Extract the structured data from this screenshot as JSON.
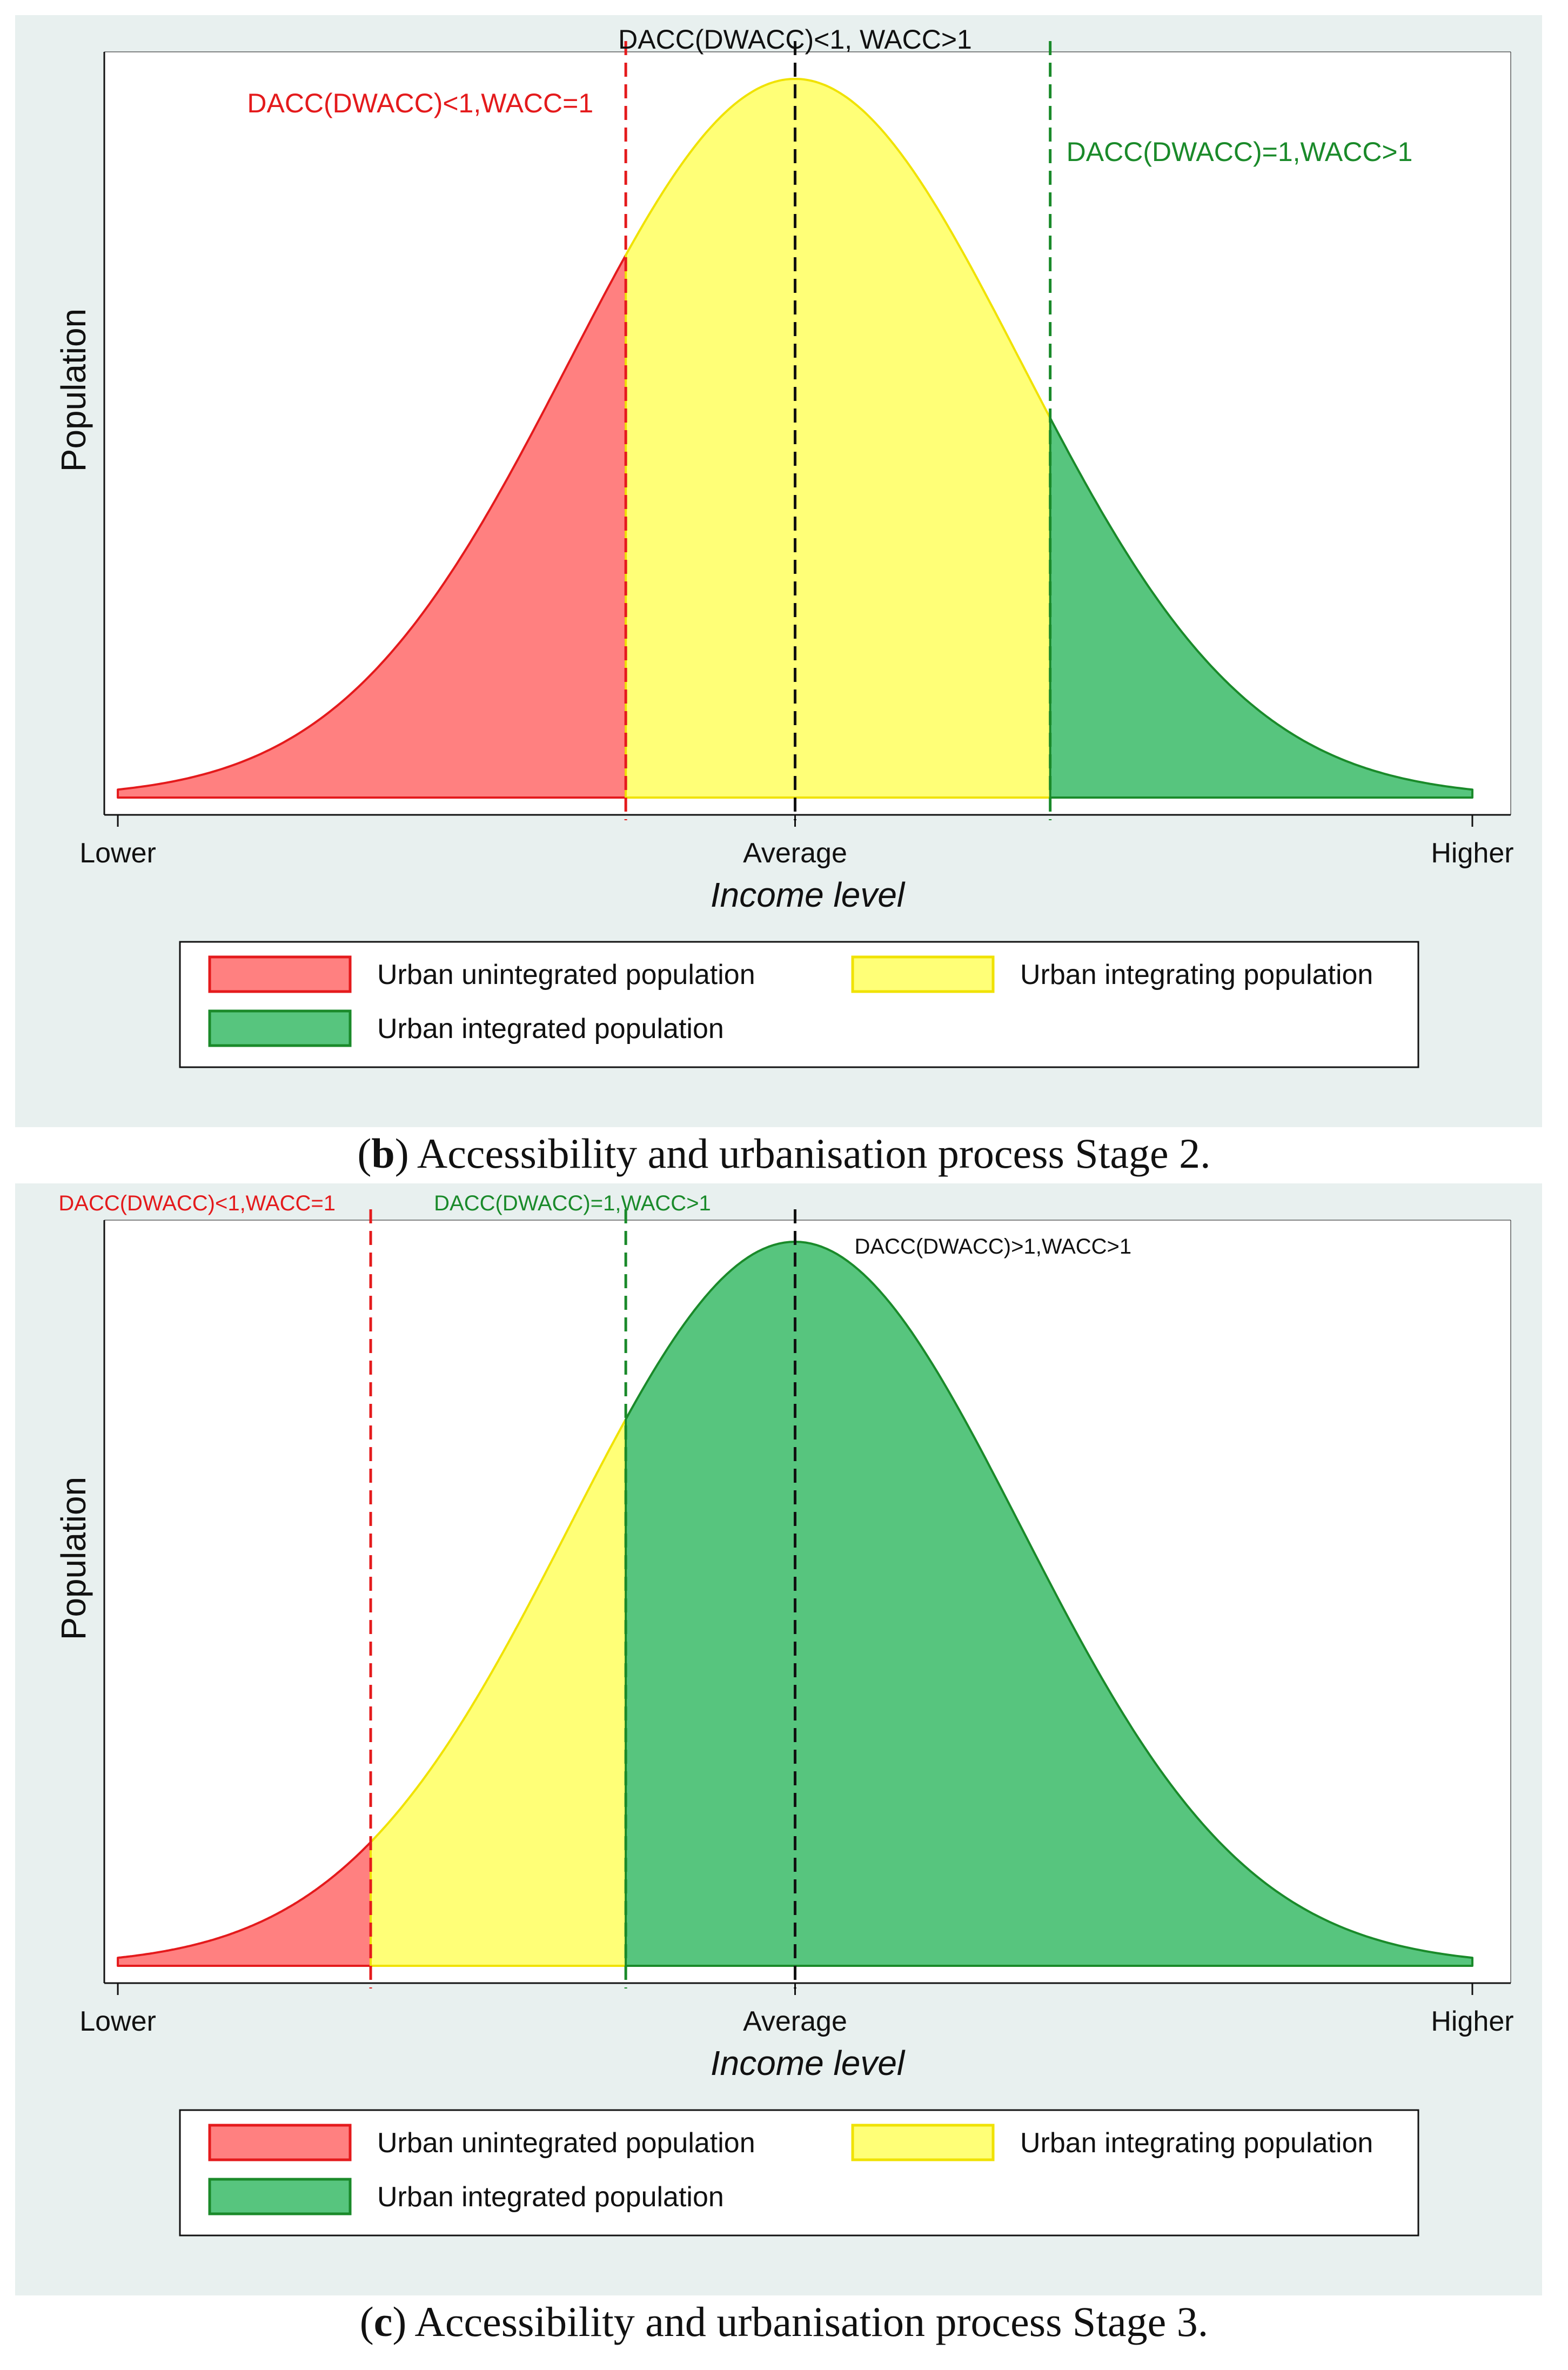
{
  "colors": {
    "red_fill": "#ff8080",
    "red_line": "#e41a1c",
    "yellow_fill": "#ffff77",
    "yellow_line": "#f0e200",
    "green_fill": "#57c57e",
    "green_line": "#1a8a2a",
    "black": "#111111",
    "panel_bg": "#e8f0ef"
  },
  "charts": [
    {
      "caption": {
        "letter": "b",
        "open": "(",
        "close": ")",
        "text": " Accessibility and urbanisation process Stage 2."
      },
      "chart_data": {
        "type": "area",
        "title": "",
        "xlabel": "Income level",
        "ylabel": "Population",
        "x_ticks": [
          {
            "x": -3,
            "label": "Lower"
          },
          {
            "x": 0,
            "label": "Average"
          },
          {
            "x": 3,
            "label": "Higher"
          }
        ],
        "xlim": [
          -3.06,
          3.17
        ],
        "ylim": [
          0,
          1.0
        ],
        "curve": {
          "mean": 0,
          "sd": 1,
          "x_range": [
            -3,
            3
          ]
        },
        "regions": [
          {
            "name": "Urban unintegrated population",
            "from": -3,
            "to": -0.75,
            "color": "red"
          },
          {
            "name": "Urban integrating population",
            "from": -0.75,
            "to": 1.13,
            "color": "yellow"
          },
          {
            "name": "Urban integrated population",
            "from": 1.13,
            "to": 3,
            "color": "green"
          }
        ],
        "lines": [
          {
            "x": -0.75,
            "color": "red",
            "label": "DACC(DWACC)<1,WACC=1",
            "label_pos": "upper-left"
          },
          {
            "x": 0,
            "color": "black",
            "label": "DACC(DWACC)<1, WACC>1",
            "label_pos": "top-center"
          },
          {
            "x": 1.13,
            "color": "green",
            "label": "DACC(DWACC)=1,WACC>1",
            "label_pos": "upper-right"
          }
        ],
        "legend": {
          "placement": "bottom",
          "entries": [
            {
              "label": "Urban unintegrated population",
              "color": "red"
            },
            {
              "label": "Urban integrating population",
              "color": "yellow"
            },
            {
              "label": "Urban integrated population",
              "color": "green"
            }
          ]
        }
      }
    },
    {
      "caption": {
        "letter": "c",
        "open": "(",
        "close": ")",
        "text": " Accessibility and urbanisation process Stage 3."
      },
      "chart_data": {
        "type": "area",
        "title": "",
        "xlabel": "Income level",
        "ylabel": "Population",
        "x_ticks": [
          {
            "x": -3,
            "label": "Lower"
          },
          {
            "x": 0,
            "label": "Average"
          },
          {
            "x": 3,
            "label": "Higher"
          }
        ],
        "xlim": [
          -3.06,
          3.17
        ],
        "ylim": [
          0,
          1.0
        ],
        "curve": {
          "mean": 0,
          "sd": 1,
          "x_range": [
            -3,
            3
          ]
        },
        "regions": [
          {
            "name": "Urban unintegrated population",
            "from": -3,
            "to": -1.88,
            "color": "red"
          },
          {
            "name": "Urban integrating population",
            "from": -1.88,
            "to": -0.75,
            "color": "yellow"
          },
          {
            "name": "Urban integrated population",
            "from": -0.75,
            "to": 3,
            "color": "green"
          }
        ],
        "lines": [
          {
            "x": -1.88,
            "color": "red",
            "label": "DACC(DWACC)<1,WACC=1",
            "label_pos": "top-left"
          },
          {
            "x": -0.75,
            "color": "green",
            "label": "DACC(DWACC)=1,WACC>1",
            "label_pos": "top"
          },
          {
            "x": 0,
            "color": "black",
            "label": "DACC(DWACC)>1,WACC>1",
            "label_pos": "upper-right"
          }
        ],
        "legend": {
          "placement": "bottom",
          "entries": [
            {
              "label": "Urban unintegrated population",
              "color": "red"
            },
            {
              "label": "Urban integrating population",
              "color": "yellow"
            },
            {
              "label": "Urban integrated population",
              "color": "green"
            }
          ]
        }
      }
    }
  ]
}
